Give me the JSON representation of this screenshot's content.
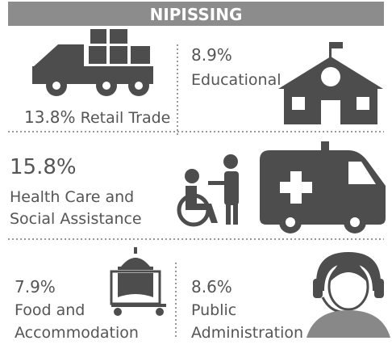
{
  "header": {
    "title": "NIPISSING"
  },
  "sectors": [
    {
      "percent": "13.8%",
      "label": [
        "Retail Trade"
      ]
    },
    {
      "percent": "8.9%",
      "label": [
        "Educational"
      ]
    },
    {
      "percent": "15.8%",
      "label": [
        "Health Care and",
        "Social Assistance"
      ]
    },
    {
      "percent": "7.9%",
      "label": [
        "Food and",
        "Accommodation"
      ]
    },
    {
      "percent": "8.6%",
      "label": [
        "Public",
        "Administration"
      ]
    }
  ]
}
